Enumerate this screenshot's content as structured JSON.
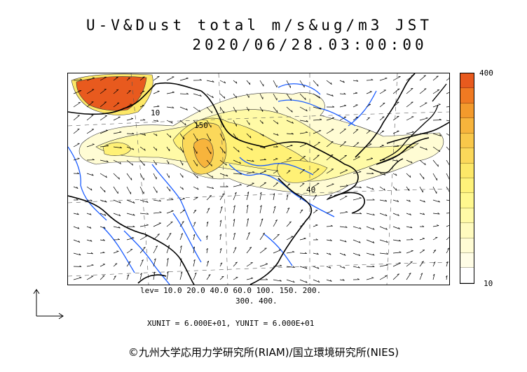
{
  "title": {
    "line1": "U-V&Dust total m/s&ug/m3 JST",
    "line2": "2020/06/28.03:00:00"
  },
  "colorbar": {
    "max_label": "400",
    "min_label": "10",
    "colors": [
      "#e85a1e",
      "#f07a22",
      "#f39a2c",
      "#f7b43c",
      "#f9c84a",
      "#fbd85a",
      "#fde868",
      "#fef27a",
      "#fff88e",
      "#fffaa6",
      "#fffbbe",
      "#fffcd4",
      "#fffde6",
      "#ffffff"
    ]
  },
  "levels": {
    "line1": "lev=  10.0  20.0  40.0  60.0  100.  150.  200.",
    "line2": "300.  400."
  },
  "units_text": "XUNIT = 6.000E+01, YUNIT = 6.000E+01",
  "contour_labels": [
    "150",
    "40",
    "10"
  ],
  "copyright": "©九州大学応用力学研究所(RIAM)/国立環境研究所(NIES)",
  "colors": {
    "coast": "#000000",
    "river": "#1a5cff",
    "grid": "#555555"
  }
}
